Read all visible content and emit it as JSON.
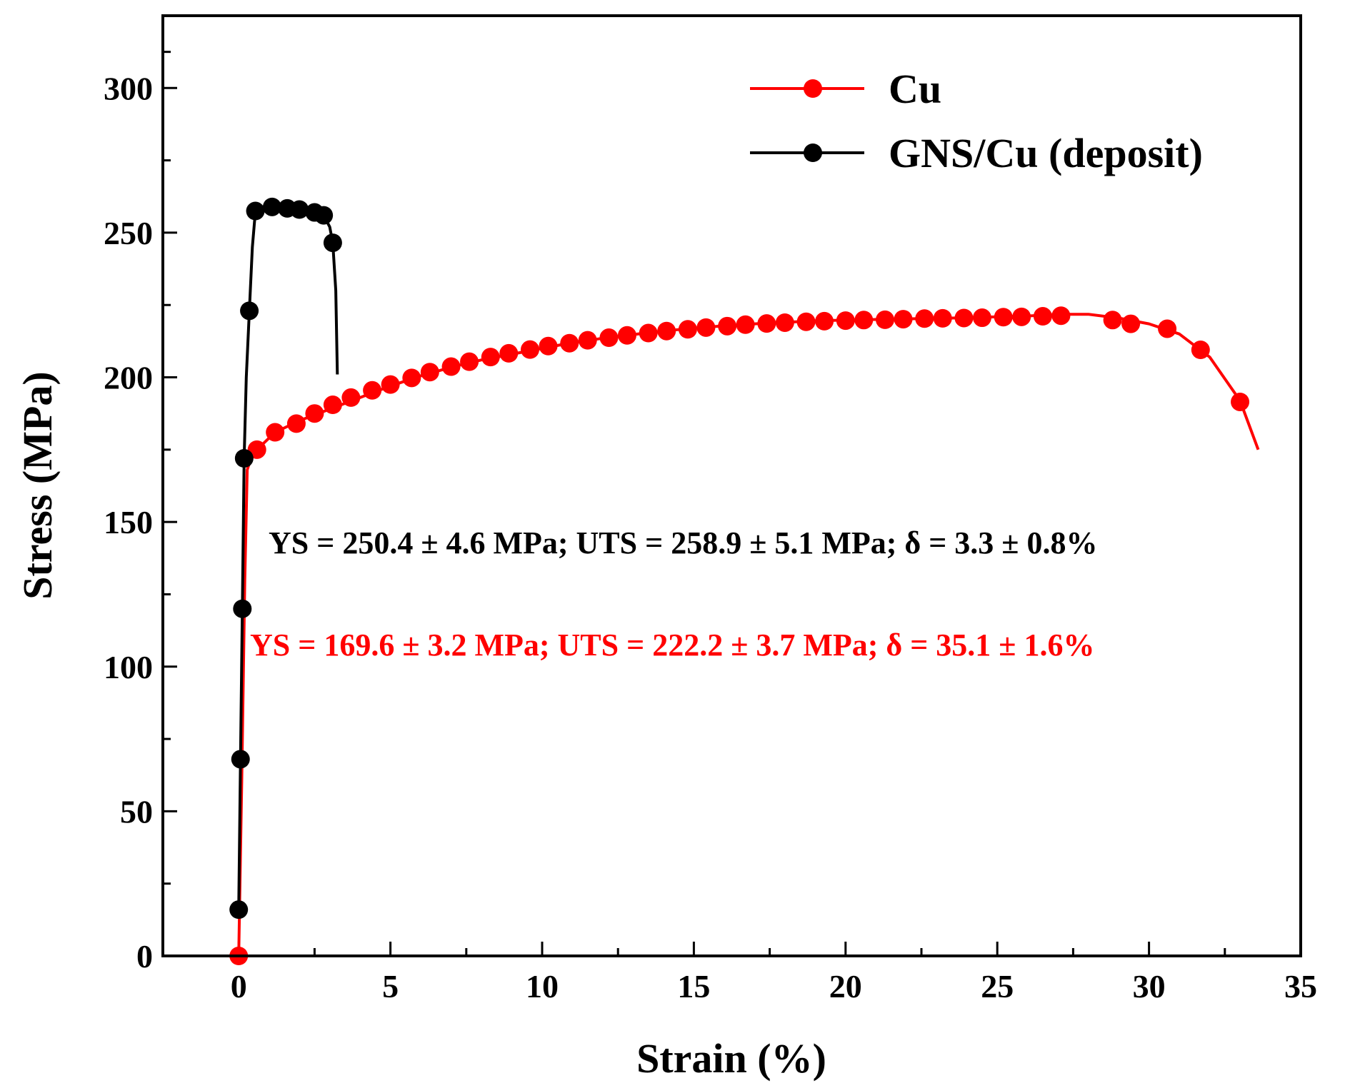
{
  "chart_data": {
    "type": "line",
    "title": "",
    "xlabel": "Strain (%)",
    "ylabel": "Stress (MPa)",
    "xlim": [
      -2.5,
      35
    ],
    "ylim": [
      0,
      325
    ],
    "xticks": [
      0,
      5,
      10,
      15,
      20,
      25,
      30,
      35
    ],
    "yticks": [
      0,
      50,
      100,
      150,
      200,
      250,
      300
    ],
    "legend_position": "top-right",
    "colors": {
      "cu": "#ff0000",
      "gns": "#000000"
    },
    "series": [
      {
        "name": "Cu",
        "color": "#ff0000",
        "marker": "circle",
        "line": [
          [
            0,
            0
          ],
          [
            0.1,
            60
          ],
          [
            0.2,
            130
          ],
          [
            0.28,
            168
          ],
          [
            0.4,
            172
          ],
          [
            0.6,
            175
          ],
          [
            1.2,
            181
          ],
          [
            2,
            185
          ],
          [
            3,
            189
          ],
          [
            4,
            193
          ],
          [
            5,
            197
          ],
          [
            6,
            200.5
          ],
          [
            7,
            203.5
          ],
          [
            8,
            206
          ],
          [
            9,
            208
          ],
          [
            10,
            210
          ],
          [
            11,
            212
          ],
          [
            12,
            213.5
          ],
          [
            13,
            214.8
          ],
          [
            14,
            216
          ],
          [
            15,
            217
          ],
          [
            16,
            217.8
          ],
          [
            17,
            218.5
          ],
          [
            18,
            219
          ],
          [
            19,
            219.5
          ],
          [
            20,
            219.8
          ],
          [
            21,
            220
          ],
          [
            22,
            220.2
          ],
          [
            23,
            220.4
          ],
          [
            24,
            220.6
          ],
          [
            25,
            220.9
          ],
          [
            26,
            221.2
          ],
          [
            27,
            221.8
          ],
          [
            28,
            221.8
          ],
          [
            29,
            220.5
          ],
          [
            30,
            218.5
          ],
          [
            31,
            215
          ],
          [
            32,
            207
          ],
          [
            33,
            192
          ],
          [
            33.6,
            175
          ]
        ],
        "markers": [
          [
            0,
            0
          ],
          [
            0.6,
            175
          ],
          [
            1.2,
            181
          ],
          [
            1.9,
            184
          ],
          [
            2.5,
            187.5
          ],
          [
            3.1,
            190.5
          ],
          [
            3.7,
            193
          ],
          [
            4.4,
            195.5
          ],
          [
            5.0,
            197.5
          ],
          [
            5.7,
            199.8
          ],
          [
            6.3,
            201.8
          ],
          [
            7.0,
            203.7
          ],
          [
            7.6,
            205.4
          ],
          [
            8.3,
            207
          ],
          [
            8.9,
            208.3
          ],
          [
            9.6,
            209.6
          ],
          [
            10.2,
            210.8
          ],
          [
            10.9,
            211.8
          ],
          [
            11.5,
            212.8
          ],
          [
            12.2,
            213.7
          ],
          [
            12.8,
            214.5
          ],
          [
            13.5,
            215.3
          ],
          [
            14.1,
            216
          ],
          [
            14.8,
            216.6
          ],
          [
            15.4,
            217.2
          ],
          [
            16.1,
            217.7
          ],
          [
            16.7,
            218.2
          ],
          [
            17.4,
            218.6
          ],
          [
            18.0,
            218.9
          ],
          [
            18.7,
            219.2
          ],
          [
            19.3,
            219.4
          ],
          [
            20.0,
            219.6
          ],
          [
            20.6,
            219.8
          ],
          [
            21.3,
            219.9
          ],
          [
            21.9,
            220.1
          ],
          [
            22.6,
            220.3
          ],
          [
            23.2,
            220.4
          ],
          [
            23.9,
            220.5
          ],
          [
            24.5,
            220.6
          ],
          [
            25.2,
            220.8
          ],
          [
            25.8,
            220.9
          ],
          [
            26.5,
            221.1
          ],
          [
            27.1,
            221.3
          ],
          [
            28.8,
            219.8
          ],
          [
            29.4,
            218.5
          ],
          [
            30.6,
            216.8
          ],
          [
            31.7,
            209.5
          ],
          [
            33.0,
            191.5
          ]
        ]
      },
      {
        "name": "GNS/Cu (deposit)",
        "color": "#000000",
        "marker": "circle",
        "line": [
          [
            0,
            16
          ],
          [
            0.06,
            68
          ],
          [
            0.12,
            120
          ],
          [
            0.18,
            172
          ],
          [
            0.25,
            200
          ],
          [
            0.35,
            223
          ],
          [
            0.45,
            245
          ],
          [
            0.55,
            257.5
          ],
          [
            0.8,
            258
          ],
          [
            1.1,
            258.9
          ],
          [
            1.5,
            258.5
          ],
          [
            2,
            258
          ],
          [
            2.5,
            257
          ],
          [
            2.8,
            256
          ],
          [
            3.0,
            252
          ],
          [
            3.1,
            246.5
          ],
          [
            3.2,
            230
          ],
          [
            3.25,
            201
          ]
        ],
        "markers": [
          [
            0,
            16
          ],
          [
            0.06,
            68
          ],
          [
            0.12,
            120
          ],
          [
            0.18,
            172
          ],
          [
            0.35,
            223
          ],
          [
            0.55,
            257.5
          ],
          [
            1.1,
            258.9
          ],
          [
            1.6,
            258.4
          ],
          [
            2.0,
            258
          ],
          [
            2.5,
            257
          ],
          [
            2.8,
            256
          ],
          [
            3.1,
            246.5
          ]
        ]
      }
    ],
    "annotations": [
      {
        "text": "YS = 250.4 ± 4.6 MPa; UTS = 258.9 ± 5.1 MPa; δ = 3.3 ± 0.8%",
        "color": "#000000"
      },
      {
        "text": "YS = 169.6 ± 3.2 MPa; UTS = 222.2 ± 3.7 MPa; δ = 35.1 ± 1.6%",
        "color": "#ff0000"
      }
    ]
  }
}
